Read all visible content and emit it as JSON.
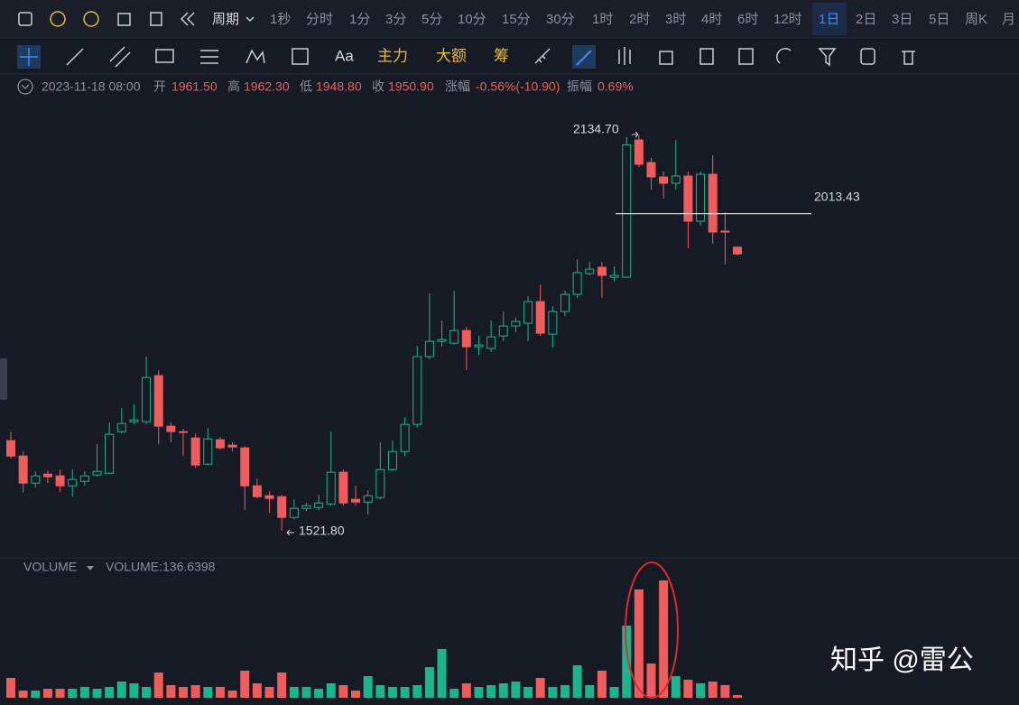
{
  "toolbar": {
    "period": "周期",
    "intervals": [
      "1秒",
      "分时",
      "1分",
      "3分",
      "5分",
      "10分",
      "15分",
      "30分",
      "1时",
      "2时",
      "3时",
      "4时",
      "6时",
      "12时",
      "1日",
      "2日",
      "3日",
      "5日",
      "周K",
      "月"
    ],
    "active": "1日"
  },
  "tools": {
    "text": "Aa",
    "indicators": [
      "主力",
      "大额",
      "筹"
    ]
  },
  "info": {
    "time": "2023-11-18 08:00",
    "fields": [
      {
        "label": "开",
        "value": "1961.50"
      },
      {
        "label": "高",
        "value": "1962.30"
      },
      {
        "label": "低",
        "value": "1948.80"
      },
      {
        "label": "收",
        "value": "1950.90"
      },
      {
        "label": "涨幅",
        "value": "-0.56%(-10.90)"
      },
      {
        "label": "振幅",
        "value": "0.69%"
      }
    ]
  },
  "volume_panel": {
    "name": "VOLUME",
    "readout": "VOLUME:136.6398"
  },
  "watermark": "知乎 @雷公",
  "chart_data": {
    "type": "candlestick",
    "up_color": "#1db38c",
    "down_color": "#ee5d5e",
    "open": [
      1661.5,
      1637.7,
      1595.7,
      1609.7,
      1606.9,
      1591.5,
      1598.5,
      1608.3,
      1611.1,
      1675.5,
      1690.9,
      1690.9,
      1762.3,
      1683.9,
      1675.5,
      1665.7,
      1625.1,
      1662.9,
      1654.5,
      1650.3,
      1591.5,
      1576.1,
      1574.7,
      1542.5,
      1556.5,
      1557.9,
      1563.5,
      1612.5,
      1570.5,
      1566.3,
      1573.3,
      1616.7,
      1644.7,
      1686.7,
      1791.7,
      1815.5,
      1812.7,
      1832.3,
      1807.1,
      1804.3,
      1823.9,
      1839.3,
      1843.5,
      1877.1,
      1826.7,
      1861.7,
      1888.3,
      1920.5,
      1930.3,
      1914.9,
      1914.9,
      2127.7,
      2092.7,
      2070.3,
      2060.5,
      2071.7,
      2001.7,
      2074.5,
      1986.3,
      1961.5
    ],
    "high": [
      1674.9,
      1644.7,
      1613.9,
      1615.3,
      1616.7,
      1616.7,
      1613.9,
      1655.9,
      1689.5,
      1711.9,
      1717.5,
      1791.7,
      1770.7,
      1689.5,
      1679.7,
      1672.7,
      1681.1,
      1667.1,
      1658.7,
      1653.1,
      1602.7,
      1583.1,
      1577.5,
      1570.5,
      1564.9,
      1577.5,
      1675.5,
      1616.7,
      1591.5,
      1584.5,
      1658.7,
      1661.5,
      1697.9,
      1808.5,
      1889.7,
      1847.7,
      1893.9,
      1837.9,
      1823.9,
      1847.7,
      1861.7,
      1851.9,
      1885.5,
      1903.7,
      1870.1,
      1893.9,
      1942.9,
      1938.7,
      1938.7,
      1931.7,
      2131.9,
      2134.7,
      2099.7,
      2078.7,
      2127.7,
      2078.7,
      2078.7,
      2103.9,
      2015.7,
      1962.3
    ],
    "low": [
      1633.5,
      1581.7,
      1588.7,
      1595.7,
      1581.7,
      1574.7,
      1591.5,
      1605.5,
      1609.7,
      1672.7,
      1686.7,
      1686.7,
      1655.9,
      1658.7,
      1637.7,
      1619.5,
      1623.7,
      1647.5,
      1644.7,
      1553.7,
      1571.9,
      1549.5,
      1521.8,
      1539.7,
      1552.3,
      1553.7,
      1560.7,
      1560.7,
      1560.7,
      1546.7,
      1570.5,
      1613.9,
      1637.7,
      1682.5,
      1787.5,
      1807.1,
      1809.9,
      1770.7,
      1794.5,
      1798.7,
      1815.5,
      1829.5,
      1815.5,
      1823.9,
      1805.7,
      1854.7,
      1882.7,
      1917.7,
      1882.7,
      1907.9,
      1913.5,
      2085.7,
      2050.7,
      2036.7,
      2050.7,
      1959.7,
      1994.7,
      1966.7,
      1934.5,
      1948.8
    ],
    "close": [
      1637.7,
      1595.7,
      1606.9,
      1605.5,
      1591.5,
      1601.3,
      1606.9,
      1613.9,
      1671.3,
      1688.1,
      1693.7,
      1759.5,
      1683.9,
      1675.5,
      1674.9,
      1623.7,
      1664.3,
      1650.3,
      1651.7,
      1591.5,
      1574.7,
      1571.9,
      1542.5,
      1556.5,
      1560.7,
      1564.9,
      1612.5,
      1564.9,
      1566.3,
      1576.1,
      1616.7,
      1644.7,
      1686.7,
      1791.7,
      1815.5,
      1818.3,
      1832.3,
      1807.1,
      1809.9,
      1822.5,
      1839.3,
      1846.3,
      1877.1,
      1828.1,
      1861.7,
      1888.3,
      1921.9,
      1927.5,
      1917.7,
      1917.7,
      2120,
      2089.9,
      2070.3,
      2060.5,
      2071.7,
      2001.7,
      2074.5,
      1984.9,
      1984.9,
      1950.9
    ],
    "volume": [
      990,
      360,
      360,
      450,
      450,
      450,
      540,
      450,
      540,
      810,
      720,
      540,
      1260,
      630,
      540,
      630,
      540,
      540,
      360,
      1350,
      720,
      540,
      1260,
      540,
      540,
      450,
      720,
      630,
      360,
      1080,
      630,
      540,
      540,
      630,
      1530,
      2430,
      450,
      720,
      540,
      630,
      720,
      810,
      540,
      990,
      540,
      630,
      1620,
      630,
      1350,
      540,
      3600,
      5400,
      1710,
      5850,
      1080,
      900,
      720,
      810,
      630,
      136.6398
    ],
    "high_label": {
      "value": 2134.7,
      "label": "2134.70"
    },
    "low_label": {
      "value": 1521.8,
      "label": "1521.80"
    },
    "level_line": 2013.43
  }
}
